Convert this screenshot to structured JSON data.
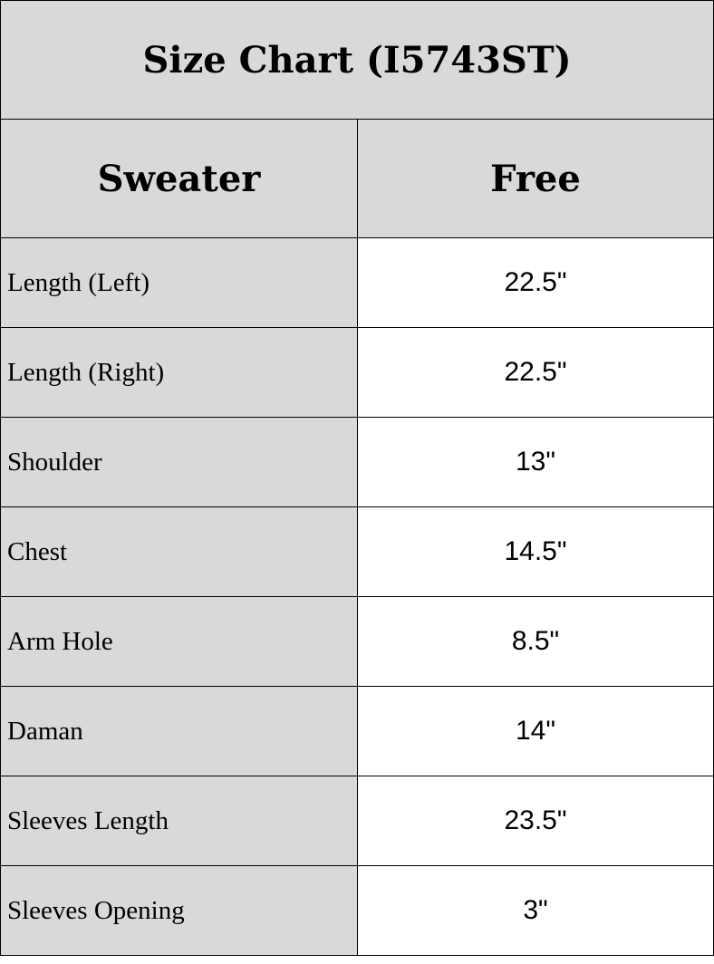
{
  "title": "Size Chart (I5743ST)",
  "header": {
    "garment": "Sweater",
    "size": "Free"
  },
  "rows": [
    {
      "label": "Length (Left)",
      "value": "22.5\""
    },
    {
      "label": "Length (Right)",
      "value": "22.5\""
    },
    {
      "label": "Shoulder",
      "value": "13\""
    },
    {
      "label": "Chest",
      "value": "14.5\""
    },
    {
      "label": "Arm Hole",
      "value": "8.5\""
    },
    {
      "label": "Daman",
      "value": "14\""
    },
    {
      "label": "Sleeves Length",
      "value": "23.5\""
    },
    {
      "label": "Sleeves Opening",
      "value": "3\""
    }
  ]
}
